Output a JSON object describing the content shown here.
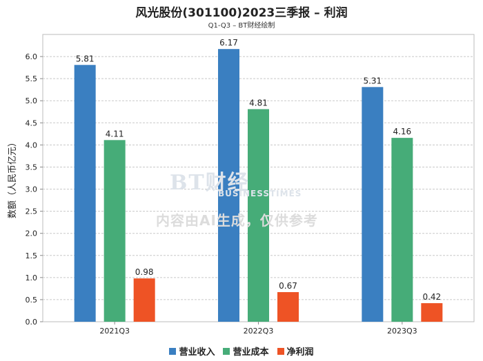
{
  "colors": {
    "revenue": "#3a7fc1",
    "cost": "#46ac78",
    "profit": "#ee5325"
  },
  "watermark": {
    "logo": "BT财经",
    "logo_sub": "BUSINESSTIMES",
    "notice": "内容由AI生成，仅供参考"
  },
  "chart_data": {
    "type": "bar",
    "title": "风光股份(301100)2023三季报 – 利润",
    "subtitle": "Q1-Q3 – BT财经绘制",
    "xlabel": "",
    "ylabel": "数额（人民币亿元）",
    "ylim": [
      0,
      6.5
    ],
    "yticks": [
      "0.0",
      "0.5",
      "1.0",
      "1.5",
      "2.0",
      "2.5",
      "3.0",
      "3.5",
      "4.0",
      "4.5",
      "5.0",
      "5.5",
      "6.0"
    ],
    "grid": true,
    "legend_position": "bottom",
    "categories": [
      "2021Q3",
      "2022Q3",
      "2023Q3"
    ],
    "series": [
      {
        "name": "营业收入",
        "color_key": "revenue",
        "values": [
          5.81,
          6.17,
          5.31
        ]
      },
      {
        "name": "营业成本",
        "color_key": "cost",
        "values": [
          4.11,
          4.81,
          4.16
        ]
      },
      {
        "name": "净利润",
        "color_key": "profit",
        "values": [
          0.98,
          0.67,
          0.42
        ]
      }
    ]
  }
}
